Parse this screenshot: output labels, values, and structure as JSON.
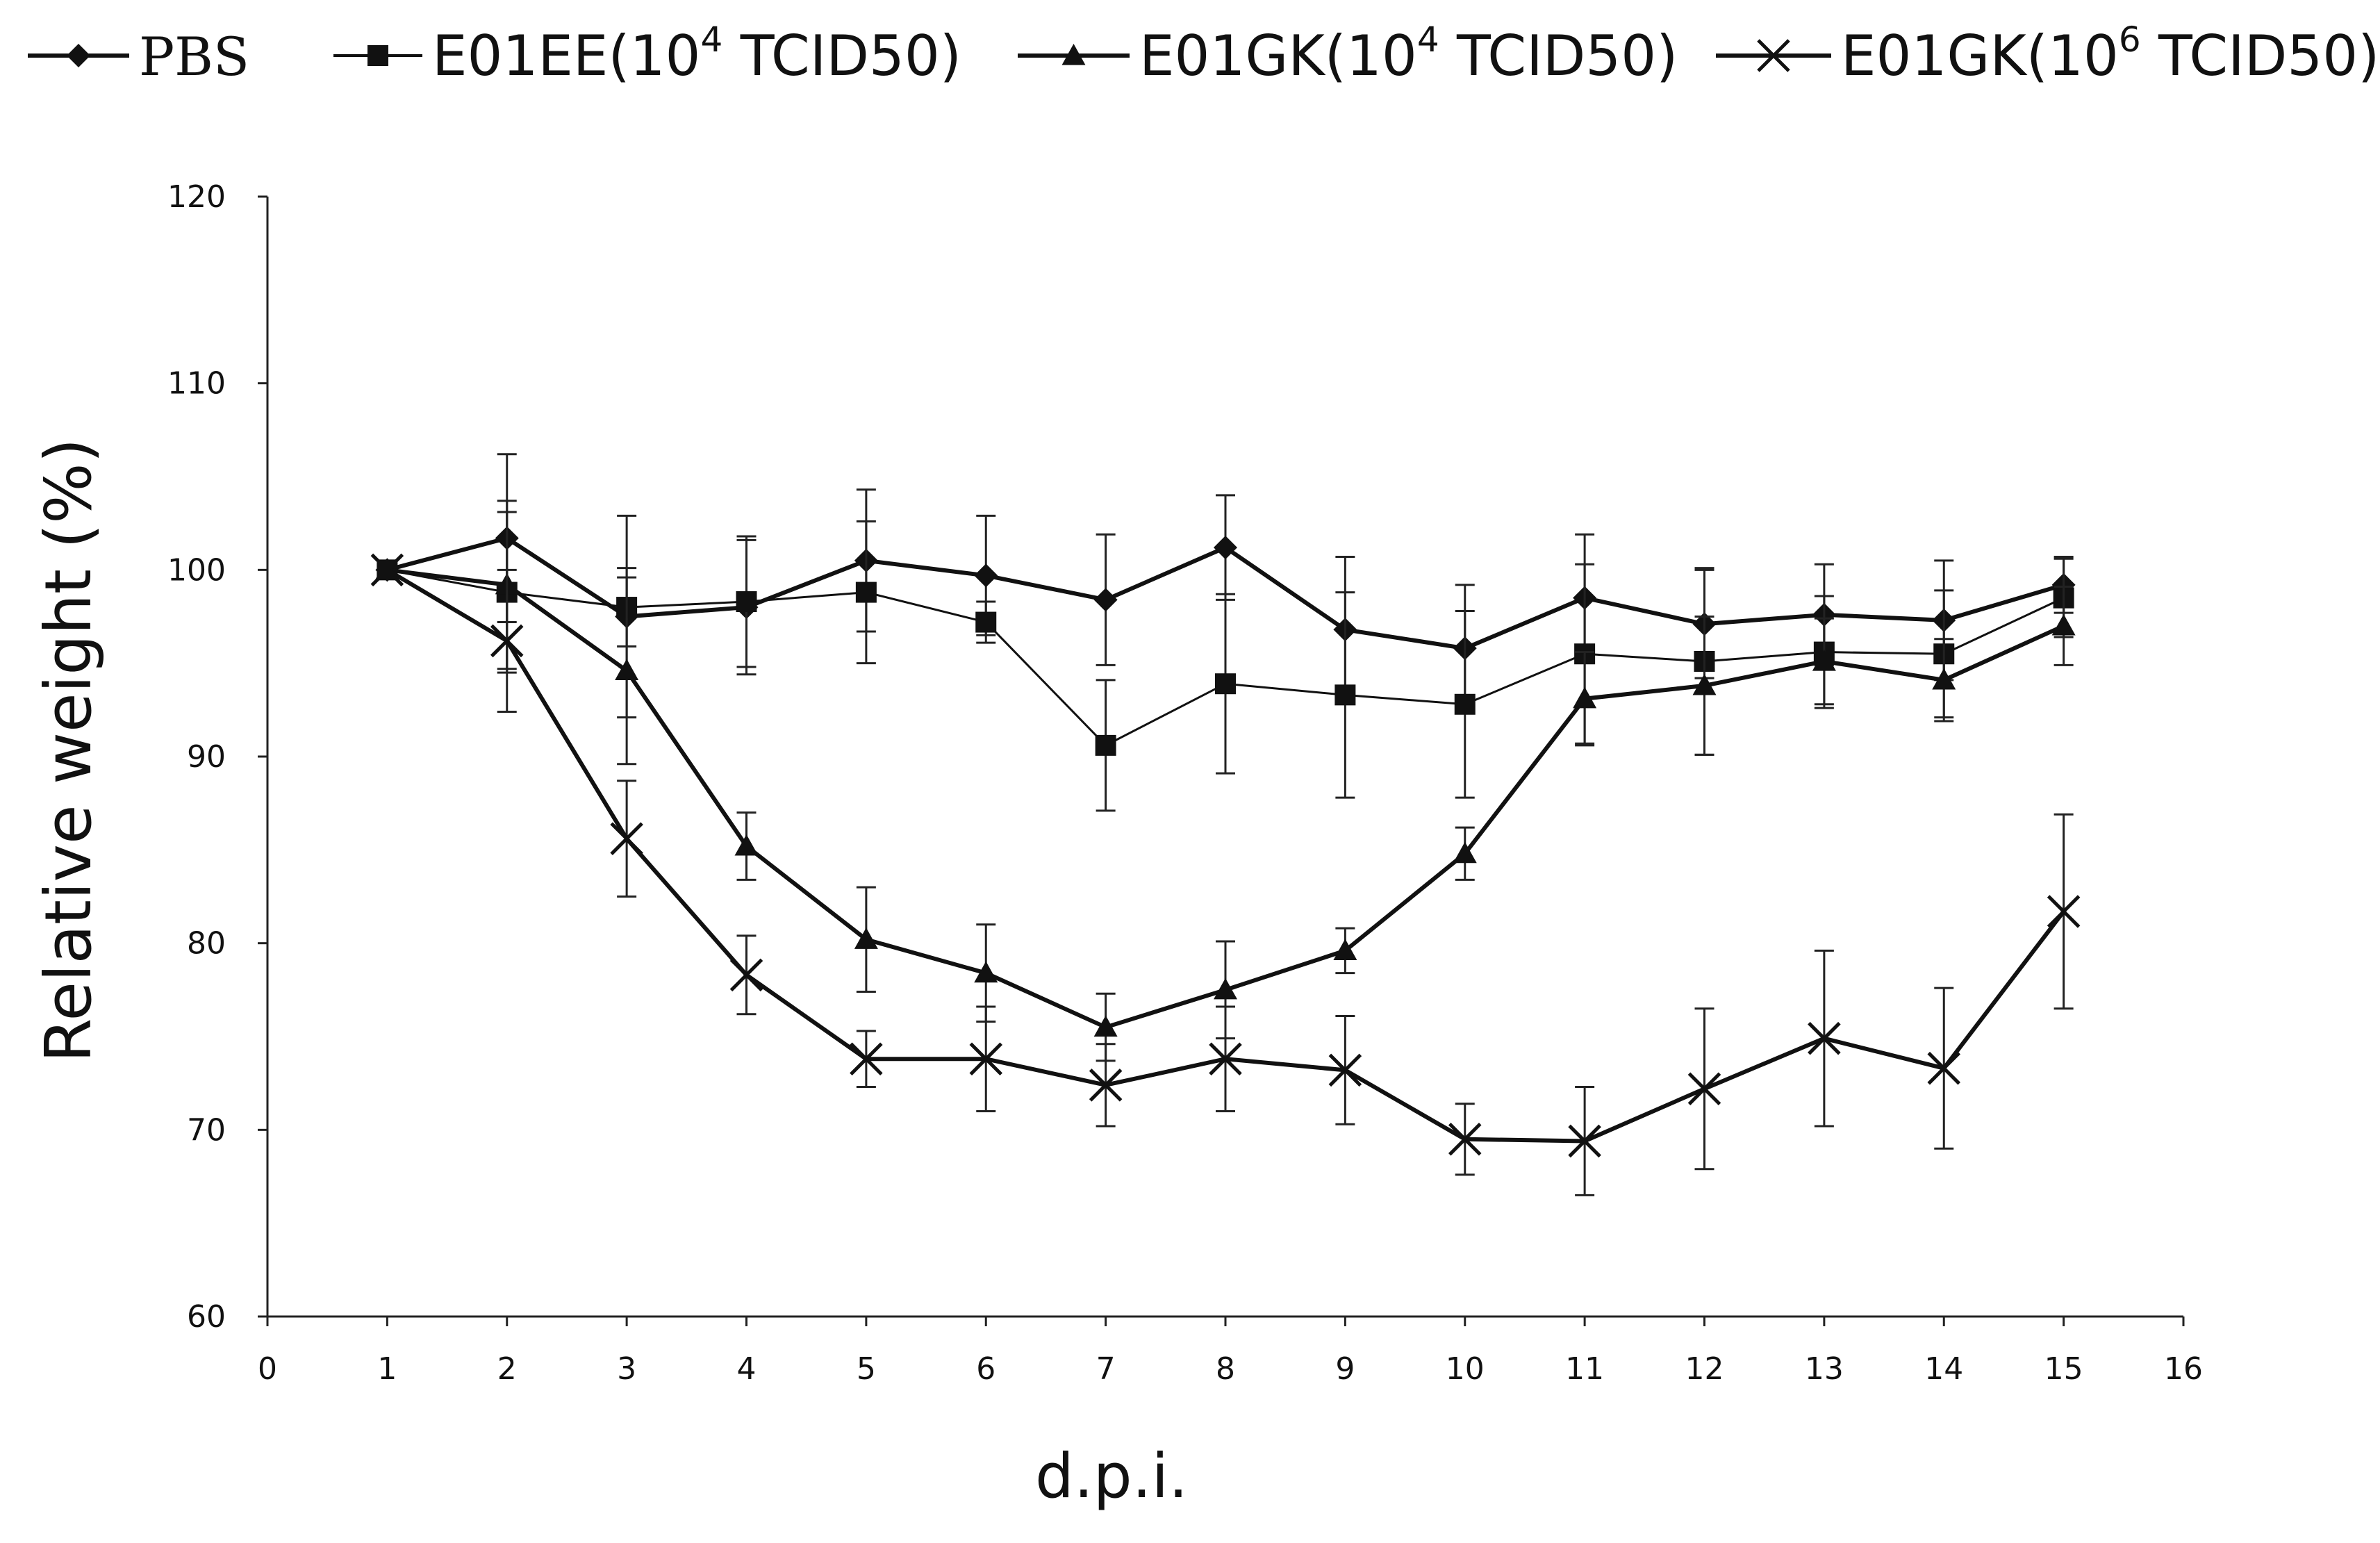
{
  "chart_data": {
    "type": "line",
    "title": "",
    "xlabel": "d.p.i.",
    "ylabel": "Relative weight (%)",
    "xlim": [
      0,
      16
    ],
    "ylim": [
      60,
      120
    ],
    "xticks": [
      "0",
      "1",
      "2",
      "3",
      "4",
      "5",
      "6",
      "7",
      "8",
      "9",
      "10",
      "11",
      "12",
      "13",
      "14",
      "15",
      "16"
    ],
    "yticks": [
      "60",
      "70",
      "80",
      "90",
      "100",
      "110",
      "120"
    ],
    "grid": false,
    "legend_position": "top",
    "x": [
      1,
      2,
      3,
      4,
      5,
      6,
      7,
      8,
      9,
      10,
      11,
      12,
      13,
      14,
      15
    ],
    "series": [
      {
        "name": "PBS",
        "legend_main": "PBS",
        "legend_sup": "",
        "legend_tail": "",
        "marker": "diamond",
        "line": "thick",
        "values": [
          100,
          101.7,
          97.5,
          98,
          100.5,
          99.7,
          98.4,
          101.2,
          96.8,
          95.8,
          98.5,
          97.1,
          97.6,
          97.3,
          99.2
        ],
        "errors": [
          0,
          4.5,
          5.4,
          3.6,
          3.8,
          3.2,
          3.5,
          2.8,
          3.9,
          3.4,
          3.4,
          2.9,
          2.7,
          3.2,
          1.5
        ]
      },
      {
        "name": "E01EE(10^4 TCID50)",
        "legend_main": "E01EE(10",
        "legend_sup": "4",
        "legend_tail": " TCID50)",
        "marker": "square",
        "line": "thin",
        "values": [
          100,
          98.8,
          98,
          98.3,
          98.8,
          97.2,
          90.6,
          93.9,
          93.3,
          92.8,
          95.5,
          95.1,
          95.6,
          95.5,
          98.5
        ],
        "errors": [
          0,
          4.3,
          2.1,
          3.5,
          3.8,
          1.1,
          3.5,
          4.8,
          5.5,
          5.0,
          4.8,
          5.0,
          3.0,
          3.4,
          2.1
        ]
      },
      {
        "name": "E01GK(10^4 TCID50)",
        "legend_main": "E01GK(10",
        "legend_sup": "4",
        "legend_tail": " TCID50)",
        "marker": "triangle",
        "line": "thick",
        "values": [
          100,
          99.2,
          94.6,
          85.2,
          80.2,
          78.4,
          75.5,
          77.5,
          79.6,
          84.8,
          93.1,
          93.8,
          95.1,
          94.1,
          97.0
        ],
        "errors": [
          0,
          4.5,
          5.0,
          1.8,
          2.8,
          2.6,
          1.8,
          2.6,
          1.2,
          1.4,
          2.5,
          3.7,
          2.3,
          2.2,
          2.1
        ]
      },
      {
        "name": "E01GK(10^6 TCID50)",
        "legend_main": "E01GK(10",
        "legend_sup": "6",
        "legend_tail": " TCID50)",
        "marker": "x",
        "line": "thick",
        "values": [
          100,
          96.2,
          85.6,
          78.3,
          73.8,
          73.8,
          72.4,
          73.8,
          73.2,
          69.5,
          69.4,
          72.2,
          74.9,
          73.3,
          81.7
        ],
        "errors": [
          0,
          3.8,
          3.1,
          2.1,
          1.5,
          2.8,
          2.2,
          2.8,
          2.9,
          1.9,
          2.9,
          4.3,
          4.7,
          4.3,
          5.2
        ]
      }
    ]
  }
}
